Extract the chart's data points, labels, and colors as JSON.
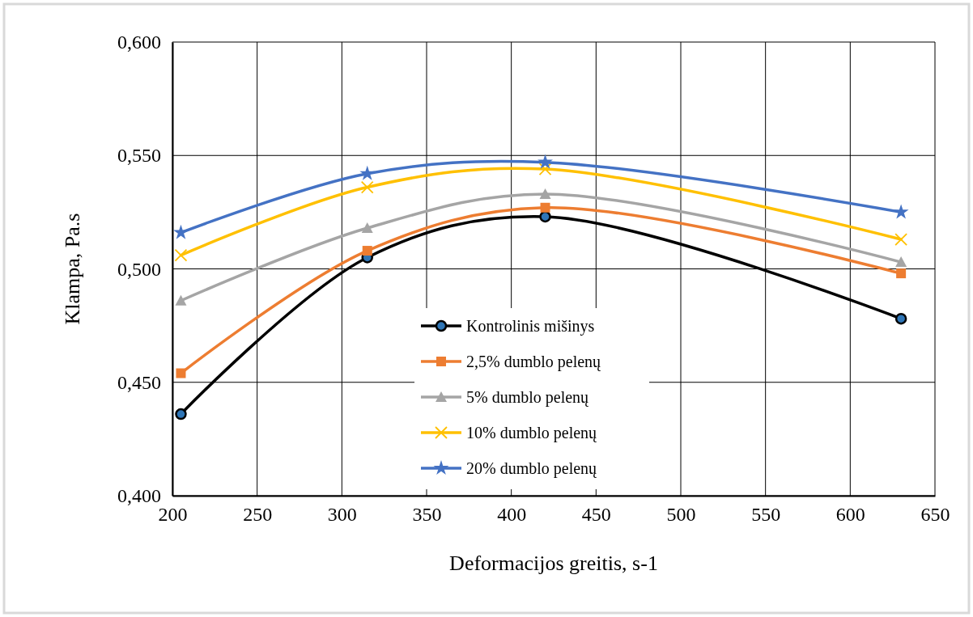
{
  "chart_data": {
    "type": "line",
    "xlabel": "Deformacijos greitis, s-1",
    "ylabel": "Klampa, Pa.s",
    "x": [
      205,
      315,
      420,
      630
    ],
    "xlim": [
      200,
      650
    ],
    "xticks": [
      200,
      250,
      300,
      350,
      400,
      450,
      500,
      550,
      600,
      650
    ],
    "ylim": [
      0.4,
      0.6
    ],
    "yticks": [
      {
        "value": 0.4,
        "label": "0,400"
      },
      {
        "value": 0.45,
        "label": "0,450"
      },
      {
        "value": 0.5,
        "label": "0,500"
      },
      {
        "value": 0.55,
        "label": "0,550"
      },
      {
        "value": 0.6,
        "label": "0,600"
      }
    ],
    "grid": true,
    "legend": "bottom",
    "line_style": "solid",
    "series": [
      {
        "name": "Kontrolinis mišinys",
        "color": "#000000",
        "marker": "circle",
        "values": [
          0.436,
          0.505,
          0.523,
          0.478
        ]
      },
      {
        "name": "2,5% dumblo pelenų",
        "color": "#ed7d31",
        "marker": "square",
        "values": [
          0.454,
          0.508,
          0.527,
          0.498
        ]
      },
      {
        "name": "5% dumblo pelenų",
        "color": "#a5a5a5",
        "marker": "triangle",
        "values": [
          0.486,
          0.518,
          0.533,
          0.503
        ]
      },
      {
        "name": "10% dumblo pelenų",
        "color": "#ffc000",
        "marker": "cross",
        "values": [
          0.506,
          0.536,
          0.544,
          0.513
        ]
      },
      {
        "name": "20% dumblo pelenų",
        "color": "#4472c4",
        "marker": "star",
        "values": [
          0.516,
          0.542,
          0.547,
          0.525
        ]
      }
    ]
  }
}
